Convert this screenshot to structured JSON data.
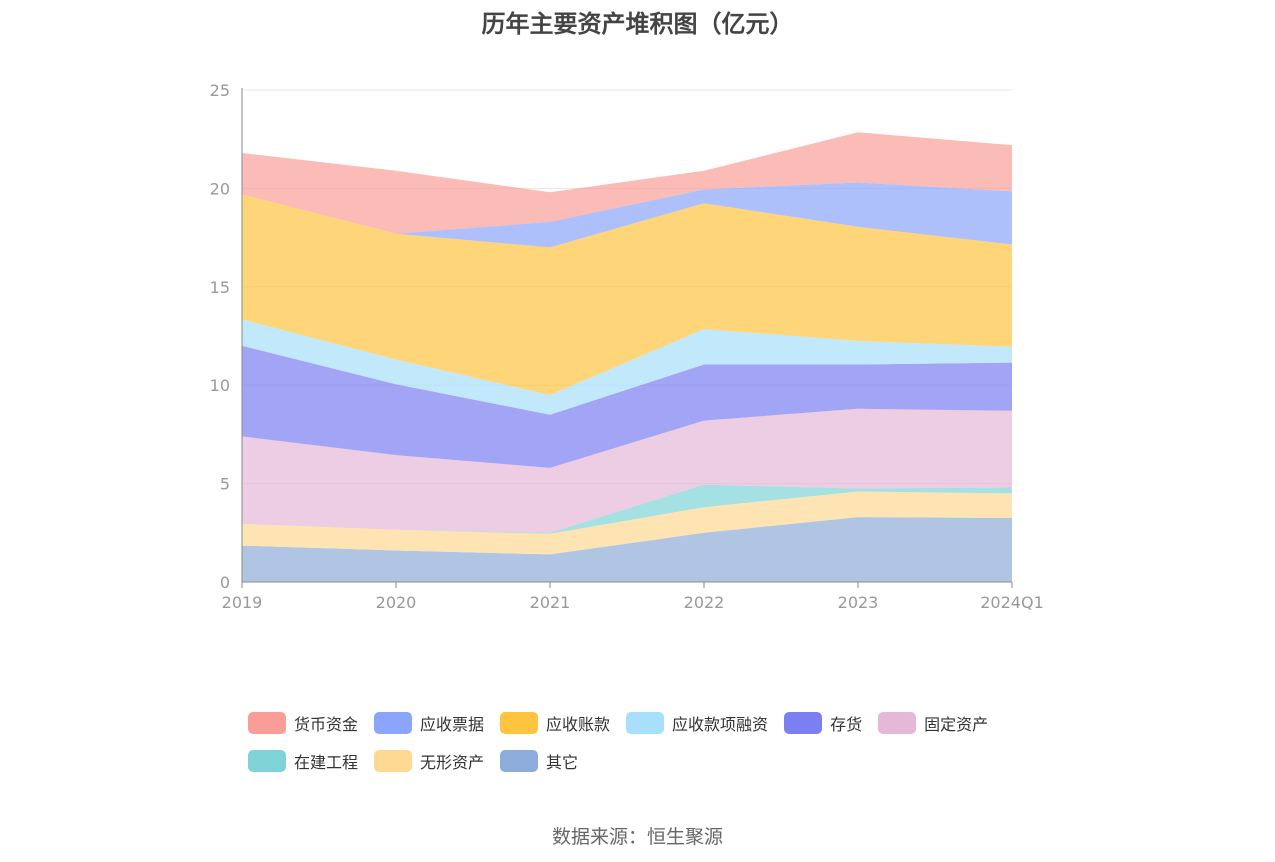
{
  "chart_data": {
    "type": "area",
    "stacked": true,
    "title": "历年主要资产堆积图（亿元）",
    "x": [
      "2019",
      "2020",
      "2021",
      "2022",
      "2023",
      "2024Q1"
    ],
    "ylim": [
      0,
      25
    ],
    "yticks": [
      0,
      5,
      10,
      15,
      20,
      25
    ],
    "grid": true,
    "legend_position": "bottom",
    "series": [
      {
        "name": "其它",
        "color": "#8eacd9",
        "values": [
          1.85,
          1.6,
          1.4,
          2.5,
          3.3,
          3.25
        ]
      },
      {
        "name": "无形资产",
        "color": "#fed993",
        "values": [
          1.1,
          1.05,
          1.05,
          1.3,
          1.3,
          1.25
        ]
      },
      {
        "name": "在建工程",
        "color": "#7fd3d6",
        "values": [
          0.0,
          0.0,
          0.05,
          1.15,
          0.15,
          0.3
        ]
      },
      {
        "name": "固定资产",
        "color": "#e6b8d7",
        "values": [
          4.45,
          3.8,
          3.3,
          3.25,
          4.05,
          3.9
        ]
      },
      {
        "name": "存货",
        "color": "#7b7ff2",
        "values": [
          4.6,
          3.6,
          2.7,
          2.85,
          2.25,
          2.45
        ]
      },
      {
        "name": "应收款项融资",
        "color": "#a8dffa",
        "values": [
          1.35,
          1.25,
          1.0,
          1.8,
          1.2,
          0.8
        ]
      },
      {
        "name": "应收账款",
        "color": "#fdc440",
        "values": [
          6.35,
          6.4,
          7.5,
          6.4,
          5.8,
          5.2
        ]
      },
      {
        "name": "应收票据",
        "color": "#8aa5fb",
        "values": [
          0.0,
          0.0,
          1.3,
          0.7,
          2.25,
          2.7
        ]
      },
      {
        "name": "货币资金",
        "color": "#f99e97",
        "values": [
          2.1,
          3.2,
          1.5,
          0.95,
          2.55,
          2.35
        ]
      }
    ]
  },
  "legend_order": [
    "货币资金",
    "应收票据",
    "应收账款",
    "应收款项融资",
    "存货",
    "固定资产",
    "在建工程",
    "无形资产",
    "其它"
  ],
  "source": "数据来源：恒生聚源"
}
